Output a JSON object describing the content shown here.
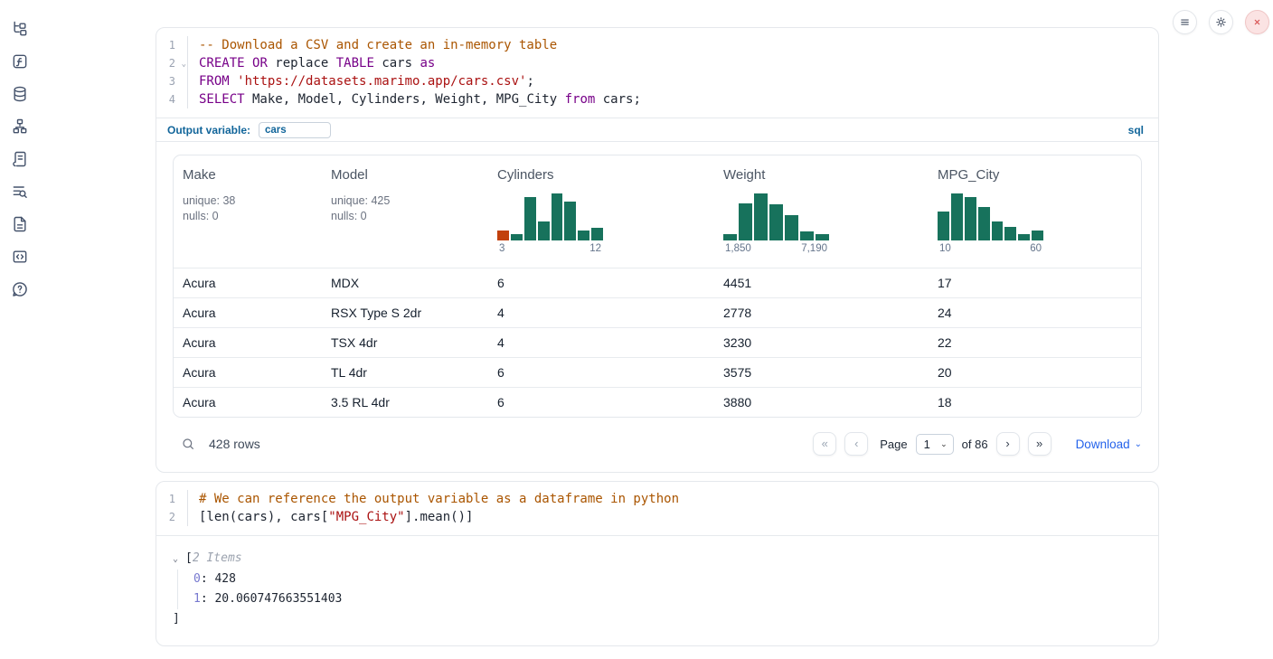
{
  "colors": {
    "accent_blue": "#11659a",
    "link_blue": "#2563eb",
    "hist_teal": "#17725c",
    "hist_orange": "#c2410c",
    "code_comment": "#aa5500",
    "code_keyword": "#770088",
    "code_string": "#aa1111",
    "danger_red": "#d95757"
  },
  "icons": {
    "fold": "⌄",
    "tree_collapse": "⌄",
    "dropdown": "⌄",
    "first_page": "«",
    "prev_page": "‹",
    "next_page": "›",
    "last_page": "»"
  },
  "sidebar": {
    "items": [
      {
        "icon": "file-tree-icon"
      },
      {
        "icon": "function-icon"
      },
      {
        "icon": "database-icon"
      },
      {
        "icon": "dependency-graph-icon"
      },
      {
        "icon": "scratchpad-icon"
      },
      {
        "icon": "logs-icon"
      },
      {
        "icon": "documentation-icon"
      },
      {
        "icon": "snippets-icon"
      },
      {
        "icon": "help-icon"
      }
    ]
  },
  "topbar": {
    "buttons": [
      {
        "icon": "menu-icon"
      },
      {
        "icon": "settings-gear-icon"
      },
      {
        "icon": "close-icon"
      }
    ]
  },
  "sql_cell": {
    "lines": [
      {
        "num": "1",
        "fold": false,
        "segments": [
          {
            "c": "comment",
            "t": "-- Download a CSV and create an in-memory table"
          }
        ]
      },
      {
        "num": "2",
        "fold": true,
        "segments": [
          {
            "c": "keyword",
            "t": "CREATE"
          },
          {
            "c": "plain",
            "t": " "
          },
          {
            "c": "keyword",
            "t": "OR"
          },
          {
            "c": "plain",
            "t": " replace "
          },
          {
            "c": "keyword",
            "t": "TABLE"
          },
          {
            "c": "plain",
            "t": " cars "
          },
          {
            "c": "keyword",
            "t": "as"
          }
        ]
      },
      {
        "num": "3",
        "fold": false,
        "segments": [
          {
            "c": "keyword",
            "t": "FROM"
          },
          {
            "c": "plain",
            "t": " "
          },
          {
            "c": "string",
            "t": "'https://datasets.marimo.app/cars.csv'"
          },
          {
            "c": "plain",
            "t": ";"
          }
        ]
      },
      {
        "num": "4",
        "fold": false,
        "segments": [
          {
            "c": "keyword",
            "t": "SELECT"
          },
          {
            "c": "plain",
            "t": " Make, Model, Cylinders, Weight, MPG_City "
          },
          {
            "c": "keyword",
            "t": "from"
          },
          {
            "c": "plain",
            "t": " cars;"
          }
        ]
      }
    ],
    "output_variable_label": "Output variable:",
    "output_variable_value": "cars",
    "language_tag": "sql"
  },
  "table": {
    "columns": [
      {
        "name": "Make",
        "stats": [
          "unique: 38",
          "nulls: 0"
        ]
      },
      {
        "name": "Model",
        "stats": [
          "unique: 425",
          "nulls: 0"
        ]
      },
      {
        "name": "Cylinders",
        "histogram": {
          "min_label": "3",
          "max_label": "12",
          "bars": [
            {
              "pct": 20,
              "color": "#c2410c"
            },
            {
              "pct": 12
            },
            {
              "pct": 87
            },
            {
              "pct": 38
            },
            {
              "pct": 95
            },
            {
              "pct": 78
            },
            {
              "pct": 20
            },
            {
              "pct": 25
            }
          ]
        }
      },
      {
        "name": "Weight",
        "histogram": {
          "min_label": "1,850",
          "max_label": "7,190",
          "bars": [
            {
              "pct": 13
            },
            {
              "pct": 75
            },
            {
              "pct": 95
            },
            {
              "pct": 73
            },
            {
              "pct": 51
            },
            {
              "pct": 18
            },
            {
              "pct": 13
            }
          ]
        }
      },
      {
        "name": "MPG_City",
        "histogram": {
          "min_label": "10",
          "max_label": "60",
          "bars": [
            {
              "pct": 58
            },
            {
              "pct": 95
            },
            {
              "pct": 88
            },
            {
              "pct": 67
            },
            {
              "pct": 38
            },
            {
              "pct": 28
            },
            {
              "pct": 12
            },
            {
              "pct": 20
            }
          ]
        }
      }
    ],
    "rows": [
      [
        "Acura",
        "MDX",
        "6",
        "4451",
        "17"
      ],
      [
        "Acura",
        "RSX Type S 2dr",
        "4",
        "2778",
        "24"
      ],
      [
        "Acura",
        "TSX 4dr",
        "4",
        "3230",
        "22"
      ],
      [
        "Acura",
        "TL 4dr",
        "6",
        "3575",
        "20"
      ],
      [
        "Acura",
        "3.5 RL 4dr",
        "6",
        "3880",
        "18"
      ]
    ],
    "footer": {
      "rows_count": "428 rows",
      "page_label": "Page",
      "page_value": "1",
      "of_label": "of 86",
      "download_label": "Download"
    }
  },
  "python_cell": {
    "lines": [
      {
        "num": "1",
        "fold": false,
        "segments": [
          {
            "c": "comment",
            "t": "# We can reference the output variable as a dataframe in python"
          }
        ]
      },
      {
        "num": "2",
        "fold": false,
        "segments": [
          {
            "c": "plain",
            "t": "[len(cars), cars["
          },
          {
            "c": "string",
            "t": "\"MPG_City\""
          },
          {
            "c": "plain",
            "t": "].mean()]"
          }
        ]
      }
    ]
  },
  "python_output": {
    "open_bracket": "[",
    "items_label": " 2 Items",
    "entries": [
      {
        "key": "0",
        "value": "428"
      },
      {
        "key": "1",
        "value": "20.060747663551403"
      }
    ],
    "close_bracket": "]"
  },
  "chart_data": [
    {
      "type": "bar",
      "title": "Cylinders histogram",
      "x_range": [
        "3",
        "12"
      ],
      "values_pct": [
        20,
        12,
        87,
        38,
        95,
        78,
        20,
        25
      ],
      "highlight_first_bar": true
    },
    {
      "type": "bar",
      "title": "Weight histogram",
      "x_range": [
        "1,850",
        "7,190"
      ],
      "values_pct": [
        13,
        75,
        95,
        73,
        51,
        18,
        13
      ]
    },
    {
      "type": "bar",
      "title": "MPG_City histogram",
      "x_range": [
        "10",
        "60"
      ],
      "values_pct": [
        58,
        95,
        88,
        67,
        38,
        28,
        12,
        20
      ]
    }
  ]
}
